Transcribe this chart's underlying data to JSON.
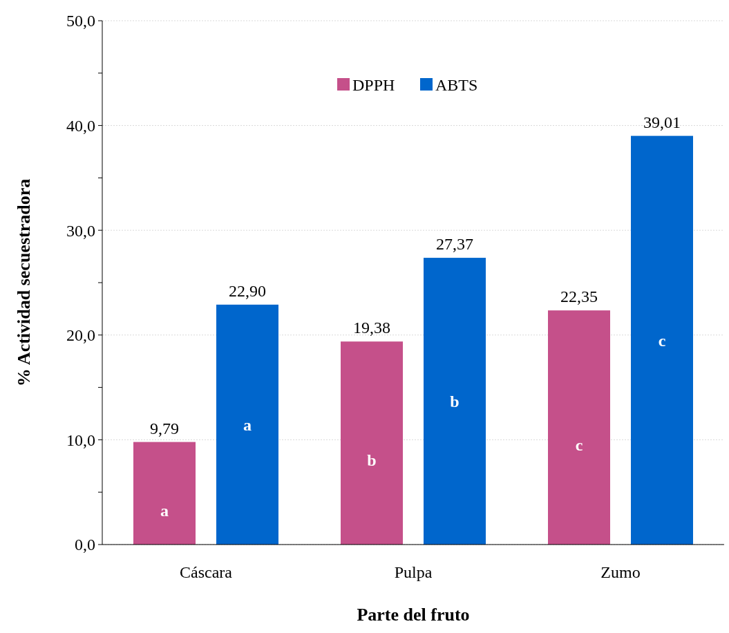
{
  "chart_data": {
    "type": "bar",
    "xlabel": "Parte del fruto",
    "ylabel": "% Actividad secuestradora",
    "categories": [
      "Cáscara",
      "Pulpa",
      "Zumo"
    ],
    "series": [
      {
        "name": "DPPH",
        "color": "#c5508a",
        "values": [
          9.79,
          19.38,
          22.35
        ],
        "value_labels": [
          "9,79",
          "19,38",
          "22,35"
        ]
      },
      {
        "name": "ABTS",
        "color": "#0066cc",
        "values": [
          22.9,
          27.37,
          39.01
        ],
        "value_labels": [
          "22,90",
          "27,37",
          "39,01"
        ]
      }
    ],
    "ylim": [
      0,
      50
    ],
    "yticks": [
      {
        "value": 0,
        "label": "0,0"
      },
      {
        "value": 5,
        "label": null
      },
      {
        "value": 10,
        "label": "10,0"
      },
      {
        "value": 15,
        "label": null
      },
      {
        "value": 20,
        "label": "20,0"
      },
      {
        "value": 25,
        "label": null
      },
      {
        "value": 30,
        "label": "30,0"
      },
      {
        "value": 35,
        "label": null
      },
      {
        "value": 40,
        "label": "40,0"
      },
      {
        "value": 45,
        "label": null
      },
      {
        "value": 50,
        "label": "50,0"
      }
    ],
    "grid": "y",
    "legend": "top",
    "annotations": [
      "a",
      "a",
      "b",
      "b",
      "c",
      "c"
    ]
  }
}
